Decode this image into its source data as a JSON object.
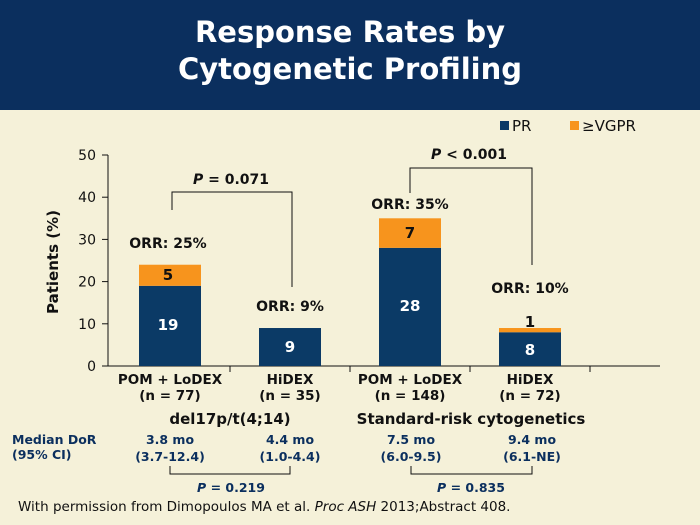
{
  "title_line1": "Response Rates by",
  "title_line2": "Cytogenetic Profiling",
  "footer": {
    "prefix": "With permission from Dimopoulos MA et al. ",
    "journal": "Proc ASH",
    "suffix": " 2013;Abstract 408."
  },
  "colors": {
    "header_bg": "#0b2f5e",
    "pr": "#0b3a66",
    "vgpr": "#f7941d",
    "background": "#f5f1d9"
  },
  "chart_data": {
    "type": "bar",
    "stacked": true,
    "ylabel": "Patients (%)",
    "ylim": [
      0,
      50
    ],
    "yticks": [
      0,
      10,
      20,
      30,
      40,
      50
    ],
    "grid": false,
    "legend_position": "top-right",
    "categories": [
      [
        "POM + LoDEX",
        "(n = 77)"
      ],
      [
        "HiDEX",
        "(n = 35)"
      ],
      [
        "POM + LoDEX",
        "(n = 148)"
      ],
      [
        "HiDEX",
        "(n = 72)"
      ]
    ],
    "series": [
      {
        "name": "PR",
        "color": "#0b3a66",
        "values": [
          19,
          9,
          28,
          8
        ]
      },
      {
        "name": "≥VGPR",
        "color": "#f7941d",
        "values": [
          5,
          0,
          7,
          1
        ]
      }
    ],
    "segment_labels": [
      [
        "19",
        "9",
        "28",
        "8"
      ],
      [
        "5",
        "",
        "7",
        "1"
      ]
    ],
    "orr_labels": [
      "ORR: 25%",
      "ORR: 9%",
      "ORR: 35%",
      "ORR: 10%"
    ],
    "groups": [
      {
        "label": "del17p/t(4;14)",
        "pvalue_label": "P",
        "pvalue_text": " = 0.071"
      },
      {
        "label": "Standard-risk cytogenetics",
        "pvalue_label": "P",
        "pvalue_text": " < 0.001"
      }
    ],
    "dor": {
      "label_line1": "Median DoR",
      "label_line2": "(95% CI)",
      "values": [
        "3.8 mo",
        "4.4 mo",
        "7.5 mo",
        "9.4 mo"
      ],
      "ci": [
        "(3.7-12.4)",
        "(1.0-4.4)",
        "(6.0-9.5)",
        "(6.1-NE)"
      ],
      "pvalues": [
        "P = 0.219",
        "P = 0.835"
      ]
    }
  }
}
